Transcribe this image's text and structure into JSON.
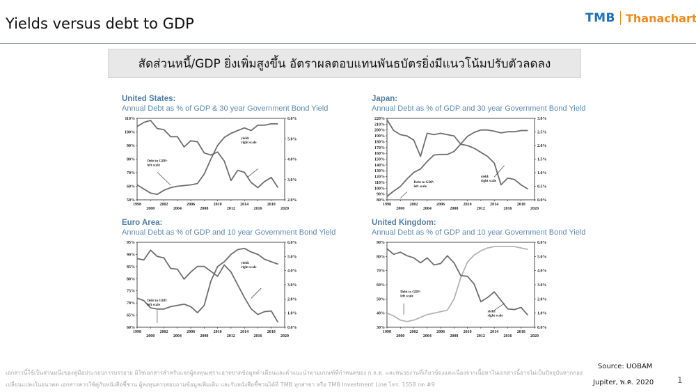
{
  "slide": {
    "title": "Yields versus debt to GDP",
    "banner": "สัดส่วนหนี้/GDP ยิ่งเพิ่มสูงขึ้น อัตราผลตอบแทนพันธบัตรยิ่งมีแนวโน้มปรับตัวลดลง",
    "logo_left": "TMB",
    "logo_right": "Thanachart",
    "source": "Source: UOBAM",
    "footer_note": "Jupiter, พ.ค. 2020",
    "page_number": "1",
    "disclaimer_line1": "เอกสารนี้ใช้เป็นส่วนหนึ่งของคู่มือประกอบการบรรยาย มิใช่เอกสารสำหรับแจกผู้ลงทุนเพราะอาจขาดข้อมูลคำเตือนและคำแนะนำตามเกณฑ์ที่กำหนดของ ก.ล.ต. และหน่วยงานที่เกี่ยวข้องและเนื่องจากเนื้อหาในเอกสารนี้อาจไม่เป็นปัจจุบันหากกองทุนมีการ",
    "disclaimer_line2": "เปลี่ยนแปลงในอนาคต เอกสารควรใช้คู่กับหนังสือชี้ชวน ผู้ลงทุนควรสอบถามข้อมูลเพิ่มเติม และรับหนังสือชี้ชวนได้ที่ TMB ทุกสาขา หรือ TMB Investment Line โทร. 1558 กด #9"
  },
  "colors": {
    "title_blue": "#4d7fa7",
    "debt_line": "#6e6e6e",
    "yield_line": "#6e6e6e",
    "uk_yield_line": "#b3b3b3",
    "logo_blue": "#1d6fb8",
    "logo_orange": "#f08a1c"
  },
  "chart_data": [
    {
      "type": "line",
      "title": "United States:",
      "subtitle": "Annual Debt as % of GDP & 30 year Government Bond Yield",
      "x_ticks": [
        "1998",
        "2000",
        "2002",
        "2004",
        "2006",
        "2008",
        "2010",
        "2012",
        "2014",
        "2016",
        "2018",
        "2020"
      ],
      "y_left_ticks": [
        "110%",
        "100%",
        "90%",
        "80%",
        "70%",
        "60%",
        "50%"
      ],
      "y_right_ticks": [
        "6.0%",
        "5.0%",
        "4.0%",
        "3.0%",
        "2.0%"
      ],
      "ylim_left": [
        50,
        110
      ],
      "ylim_right": [
        2.0,
        6.0
      ],
      "annotations": [
        "Debt to GDP:",
        "left scale",
        "yield:",
        "right scale"
      ],
      "series": [
        {
          "axis": "left",
          "x": [
            1998,
            1999,
            2000,
            2001,
            2002,
            2003,
            2004,
            2005,
            2006,
            2007,
            2008,
            2009,
            2010,
            2011,
            2012,
            2013,
            2014,
            2015,
            2016,
            2017,
            2018,
            2019
          ],
          "values": [
            61,
            58,
            55,
            54,
            57,
            59,
            60,
            60.5,
            61,
            62,
            69,
            80,
            90,
            96,
            99,
            101,
            103,
            101,
            105,
            105,
            106,
            106
          ]
        },
        {
          "axis": "right",
          "x": [
            1998,
            1999,
            2000,
            2001,
            2002,
            2003,
            2004,
            2005,
            2006,
            2007,
            2008,
            2009,
            2010,
            2011,
            2012,
            2013,
            2014,
            2015,
            2016,
            2017,
            2018,
            2019
          ],
          "values": [
            5.6,
            5.8,
            5.9,
            5.5,
            5.45,
            5.1,
            5.1,
            4.6,
            4.9,
            4.85,
            4.3,
            4.2,
            4.35,
            3.9,
            2.95,
            3.45,
            3.35,
            2.85,
            2.6,
            2.9,
            3.1,
            2.6
          ]
        }
      ]
    },
    {
      "type": "line",
      "title": "Japan:",
      "subtitle": "Annual Debt as % of GDP and 30 year Government Bond Yield",
      "x_ticks": [
        "1998",
        "2000",
        "2002",
        "2004",
        "2006",
        "2008",
        "2010",
        "2012",
        "2014",
        "2016",
        "2018",
        "2020"
      ],
      "y_left_ticks": [
        "220%",
        "210%",
        "200%",
        "190%",
        "180%",
        "170%",
        "160%",
        "150%",
        "140%",
        "130%",
        "120%",
        "110%",
        "100%",
        "90%",
        "80%"
      ],
      "y_right_ticks": [
        "3.0%",
        "2.5%",
        "2.0%",
        "1.5%",
        "1.0%",
        "0.5%",
        "0.0%"
      ],
      "ylim_left": [
        80,
        220
      ],
      "ylim_right": [
        0.0,
        3.0
      ],
      "annotations": [
        "Debt to GDP:",
        "left scale",
        "yield:",
        "right scale"
      ],
      "series": [
        {
          "axis": "left",
          "x": [
            1998,
            1999,
            2000,
            2001,
            2002,
            2003,
            2004,
            2005,
            2006,
            2007,
            2008,
            2009,
            2010,
            2011,
            2012,
            2013,
            2014,
            2015,
            2016,
            2017,
            2018,
            2019
          ],
          "values": [
            86,
            95,
            103,
            116,
            127,
            133,
            146,
            157,
            158,
            158,
            163,
            176,
            189,
            196,
            200,
            200,
            198,
            195,
            197,
            197,
            199,
            199
          ]
        },
        {
          "axis": "right",
          "x": [
            1998,
            1999,
            2000,
            2001,
            2002,
            2003,
            2004,
            2005,
            2006,
            2007,
            2008,
            2009,
            2010,
            2011,
            2012,
            2013,
            2014,
            2015,
            2016,
            2017,
            2018,
            2019
          ],
          "values": [
            2.95,
            2.55,
            2.4,
            2.35,
            2.2,
            1.6,
            2.45,
            2.4,
            2.45,
            2.4,
            2.35,
            2.05,
            2.0,
            1.9,
            1.75,
            1.6,
            1.35,
            0.55,
            0.8,
            0.75,
            0.55,
            0.4
          ]
        }
      ]
    },
    {
      "type": "line",
      "title": "Euro Area:",
      "subtitle": "Annual Debt as % of GDP and 10 year Government Bond Yield",
      "x_ticks": [
        "1998",
        "2000",
        "2002",
        "2004",
        "2006",
        "2008",
        "2010",
        "2012",
        "2014",
        "2016",
        "2018",
        "2020"
      ],
      "y_left_ticks": [
        "95%",
        "90%",
        "85%",
        "80%",
        "75%",
        "70%",
        "65%",
        "60%"
      ],
      "y_right_ticks": [
        "6.0%",
        "5.0%",
        "4.0%",
        "3.0%",
        "2.0%",
        "1.0%",
        "0.0%"
      ],
      "ylim_left": [
        60,
        95
      ],
      "ylim_right": [
        0.0,
        6.0
      ],
      "annotations": [
        "Debt to GDP:",
        "left scale",
        "yield:",
        "right scale"
      ],
      "series": [
        {
          "axis": "left",
          "x": [
            1998,
            1999,
            2000,
            2001,
            2002,
            2003,
            2004,
            2005,
            2006,
            2007,
            2008,
            2009,
            2010,
            2011,
            2012,
            2013,
            2014,
            2015,
            2016,
            2017,
            2018,
            2019
          ],
          "values": [
            72,
            71,
            68,
            67.5,
            67.5,
            68.5,
            69,
            69.5,
            68.5,
            66,
            69,
            79,
            85,
            87,
            90,
            92,
            92.5,
            91,
            90,
            88,
            87,
            86
          ]
        },
        {
          "axis": "right",
          "x": [
            1998,
            1999,
            2000,
            2001,
            2002,
            2003,
            2004,
            2005,
            2006,
            2007,
            2008,
            2009,
            2010,
            2011,
            2012,
            2013,
            2014,
            2015,
            2016,
            2017,
            2018,
            2019
          ],
          "values": [
            4.85,
            4.75,
            5.45,
            5.0,
            4.9,
            4.15,
            4.1,
            3.4,
            3.9,
            4.3,
            4.3,
            3.95,
            3.6,
            4.4,
            3.9,
            3.0,
            2.1,
            1.3,
            0.9,
            1.1,
            1.15,
            0.35
          ]
        }
      ]
    },
    {
      "type": "line",
      "title": "United Kingdom:",
      "subtitle": "Annual Debt as % of GDP and 10 year Government Bond Yield",
      "x_ticks": [
        "1998",
        "2000",
        "2002",
        "2004",
        "2006",
        "2008",
        "2010",
        "2012",
        "2014",
        "2016",
        "2018",
        "2020"
      ],
      "y_left_ticks": [
        "90%",
        "80%",
        "70%",
        "60%",
        "50%",
        "40%",
        "30%"
      ],
      "y_right_ticks": [
        "6.0%",
        "5.0%",
        "4.0%",
        "3.0%",
        "2.0%",
        "1.0%",
        "0.0%"
      ],
      "ylim_left": [
        30,
        90
      ],
      "ylim_right": [
        0.0,
        6.0
      ],
      "annotations": [
        "Debt to GDP:",
        "left scale",
        "yield:",
        "right scale"
      ],
      "series": [
        {
          "axis": "left",
          "x": [
            1998,
            1999,
            2000,
            2001,
            2002,
            2003,
            2004,
            2005,
            2006,
            2007,
            2008,
            2009,
            2010,
            2011,
            2012,
            2013,
            2014,
            2015,
            2016,
            2017,
            2018,
            2019
          ],
          "values": [
            40,
            38,
            35,
            34,
            35,
            37,
            39,
            40,
            41,
            42,
            50,
            65,
            76,
            81,
            84,
            86,
            87,
            87,
            87,
            87,
            86,
            85
          ]
        },
        {
          "axis": "right",
          "x": [
            1998,
            1999,
            2000,
            2001,
            2002,
            2003,
            2004,
            2005,
            2006,
            2007,
            2008,
            2009,
            2010,
            2011,
            2012,
            2013,
            2014,
            2015,
            2016,
            2017,
            2018,
            2019
          ],
          "values": [
            5.55,
            5.15,
            5.3,
            5.05,
            4.9,
            4.55,
            4.9,
            4.4,
            4.5,
            5.05,
            4.55,
            3.65,
            3.6,
            3.05,
            1.8,
            2.1,
            2.5,
            1.9,
            1.3,
            1.25,
            1.4,
            0.85
          ]
        }
      ]
    }
  ]
}
